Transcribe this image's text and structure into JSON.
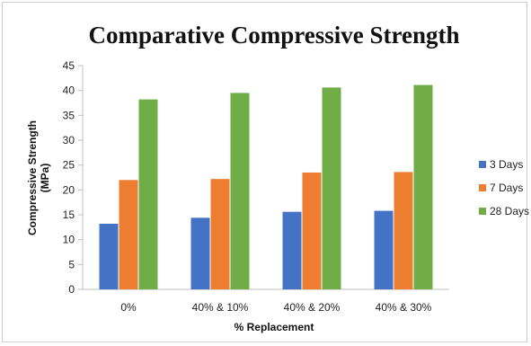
{
  "chart_data": {
    "type": "bar",
    "title": "Comparative Compressive Strength",
    "xlabel": "% Replacement",
    "ylabel_lines": [
      "Compressive Strength",
      "(MPa)"
    ],
    "categories": [
      "0%",
      "40% & 10%",
      "40% & 20%",
      "40% & 30%"
    ],
    "series": [
      {
        "name": "3 Days",
        "color": "#4472C4",
        "values": [
          13.2,
          14.4,
          15.6,
          15.8
        ]
      },
      {
        "name": "7 Days",
        "color": "#ED7D31",
        "values": [
          22.0,
          22.2,
          23.5,
          23.6
        ]
      },
      {
        "name": "28 Days",
        "color": "#70AD47",
        "values": [
          38.2,
          39.5,
          40.6,
          41.1
        ]
      }
    ],
    "ylim": [
      0,
      45
    ],
    "yticks": [
      0,
      5,
      10,
      15,
      20,
      25,
      30,
      35,
      40,
      45
    ],
    "grid": false,
    "legend_position": "right"
  }
}
